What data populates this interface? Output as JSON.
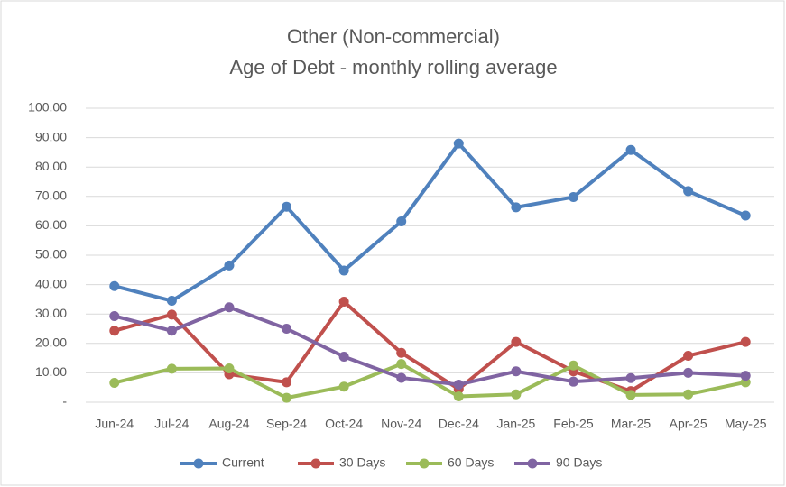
{
  "chart_data": {
    "type": "line",
    "title": "Other (Non-commercial)",
    "subtitle": "Age of Debt - monthly rolling average",
    "categories": [
      "Jun-24",
      "Jul-24",
      "Aug-24",
      "Sep-24",
      "Oct-24",
      "Nov-24",
      "Dec-24",
      "Jan-25",
      "Feb-25",
      "Mar-25",
      "Apr-25",
      "May-25"
    ],
    "series": [
      {
        "name": "Current",
        "color": "#4f81bd",
        "values": [
          39.5,
          34.5,
          46.5,
          66.5,
          44.8,
          61.5,
          88,
          66.3,
          69.8,
          85.8,
          71.8,
          63.5
        ]
      },
      {
        "name": "30 Days",
        "color": "#c0504d",
        "values": [
          24.3,
          29.8,
          9.5,
          6.8,
          34.2,
          16.8,
          4.5,
          20.5,
          10.5,
          3.8,
          15.8,
          20.5
        ]
      },
      {
        "name": "60 Days",
        "color": "#9bbb59",
        "values": [
          6.6,
          11.4,
          11.5,
          1.5,
          5.3,
          13,
          2,
          2.7,
          12.5,
          2.5,
          2.7,
          6.8
        ]
      },
      {
        "name": "90 Days",
        "color": "#8064a2",
        "values": [
          29.3,
          24.3,
          32.3,
          25,
          15.5,
          8.3,
          6,
          10.5,
          7,
          8.2,
          10,
          9
        ]
      }
    ],
    "ylim": [
      0,
      100
    ],
    "yticks": [
      {
        "value": 0,
        "label": "-"
      },
      {
        "value": 10,
        "label": "10.00"
      },
      {
        "value": 20,
        "label": "20.00"
      },
      {
        "value": 30,
        "label": "30.00"
      },
      {
        "value": 40,
        "label": "40.00"
      },
      {
        "value": 50,
        "label": "50.00"
      },
      {
        "value": 60,
        "label": "60.00"
      },
      {
        "value": 70,
        "label": "70.00"
      },
      {
        "value": 80,
        "label": "80.00"
      },
      {
        "value": 90,
        "label": "90.00"
      },
      {
        "value": 100,
        "label": "100.00"
      }
    ],
    "grid": true,
    "legend": "bottom"
  }
}
